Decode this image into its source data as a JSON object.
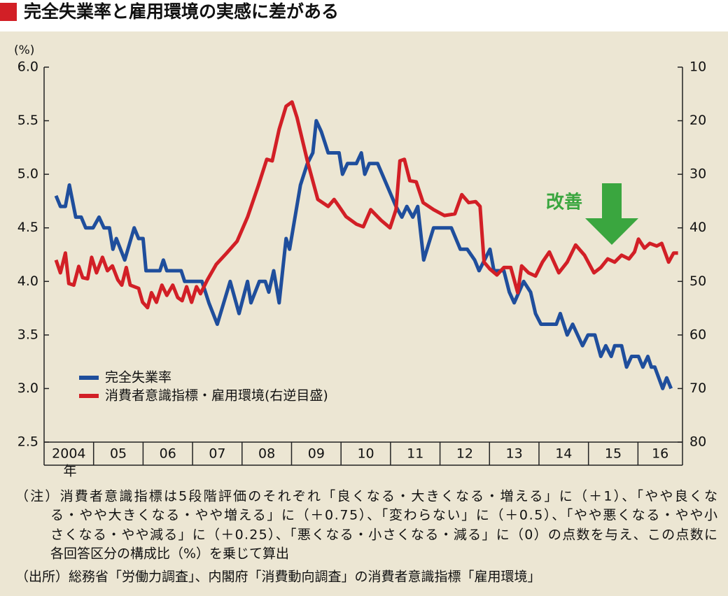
{
  "title": "完全失業率と雇用環境の実感に差がある",
  "chart_data": {
    "type": "line",
    "y_unit": "(%)",
    "x_unit": "年",
    "xlim": [
      2004,
      2016.9
    ],
    "xticks": [
      {
        "value": 2004,
        "label": "2004"
      },
      {
        "value": 2005,
        "label": "05"
      },
      {
        "value": 2006,
        "label": "06"
      },
      {
        "value": 2007,
        "label": "07"
      },
      {
        "value": 2008,
        "label": "08"
      },
      {
        "value": 2009,
        "label": "09"
      },
      {
        "value": 2010,
        "label": "10"
      },
      {
        "value": 2011,
        "label": "11"
      },
      {
        "value": 2012,
        "label": "12"
      },
      {
        "value": 2013,
        "label": "13"
      },
      {
        "value": 2014,
        "label": "14"
      },
      {
        "value": 2015,
        "label": "15"
      },
      {
        "value": 2016,
        "label": "16"
      }
    ],
    "ylim": [
      2.5,
      6
    ],
    "yticks": [
      {
        "value": 6,
        "label": "6.0"
      },
      5.5,
      {
        "value": 5,
        "label": "5.0"
      },
      4.5,
      {
        "value": 4,
        "label": "4.0"
      },
      3.5,
      {
        "value": 3,
        "label": "3.0"
      },
      2.5
    ],
    "y2lim": [
      80,
      10
    ],
    "y2ticks": [
      10,
      20,
      30,
      40,
      50,
      60,
      70,
      80
    ],
    "series": [
      {
        "name": "完全失業率",
        "color": "#1f4e9c",
        "axis": "y",
        "x": [
          2004.24,
          2004.33,
          2004.43,
          2004.51,
          2004.64,
          2004.75,
          2004.84,
          2004.99,
          2005.11,
          2005.21,
          2005.32,
          2005.39,
          2005.46,
          2005.63,
          2005.82,
          2005.91,
          2006.0,
          2006.06,
          2006.34,
          2006.41,
          2006.48,
          2006.77,
          2006.84,
          2007.19,
          2007.26,
          2007.33,
          2007.5,
          2007.76,
          2007.94,
          2008.11,
          2008.18,
          2008.35,
          2008.47,
          2008.54,
          2008.64,
          2008.75,
          2008.89,
          2008.96,
          2009.18,
          2009.32,
          2009.43,
          2009.5,
          2009.6,
          2009.67,
          2009.74,
          2009.96,
          2010.03,
          2010.13,
          2010.31,
          2010.41,
          2010.48,
          2010.57,
          2010.74,
          2011.11,
          2011.23,
          2011.33,
          2011.45,
          2011.55,
          2011.67,
          2011.87,
          2012.23,
          2012.41,
          2012.55,
          2012.7,
          2012.79,
          2013.01,
          2013.09,
          2013.29,
          2013.4,
          2013.5,
          2013.69,
          2013.83,
          2013.93,
          2014.04,
          2014.35,
          2014.43,
          2014.57,
          2014.68,
          2014.88,
          2014.99,
          2015.13,
          2015.25,
          2015.35,
          2015.46,
          2015.53,
          2015.67,
          2015.77,
          2015.87,
          2016.01,
          2016.1,
          2016.2,
          2016.27,
          2016.34,
          2016.5,
          2016.58,
          2016.67
        ],
        "values": [
          4.8,
          4.7,
          4.7,
          4.9,
          4.6,
          4.6,
          4.5,
          4.5,
          4.6,
          4.5,
          4.5,
          4.3,
          4.4,
          4.2,
          4.5,
          4.4,
          4.4,
          4.1,
          4.1,
          4.2,
          4.1,
          4.1,
          4.0,
          4.0,
          3.9,
          3.8,
          3.6,
          4.0,
          3.7,
          4.0,
          3.8,
          4.0,
          4.0,
          3.9,
          4.1,
          3.8,
          4.4,
          4.3,
          4.9,
          5.1,
          5.2,
          5.5,
          5.4,
          5.3,
          5.2,
          5.2,
          5.0,
          5.1,
          5.1,
          5.2,
          5.0,
          5.1,
          5.1,
          4.7,
          4.6,
          4.7,
          4.6,
          4.7,
          4.2,
          4.5,
          4.5,
          4.3,
          4.3,
          4.2,
          4.1,
          4.3,
          4.1,
          4.1,
          3.9,
          3.8,
          4.0,
          3.9,
          3.7,
          3.6,
          3.6,
          3.7,
          3.5,
          3.6,
          3.4,
          3.5,
          3.5,
          3.3,
          3.4,
          3.3,
          3.4,
          3.4,
          3.2,
          3.3,
          3.3,
          3.2,
          3.3,
          3.2,
          3.2,
          3.0,
          3.1,
          3.0
        ]
      },
      {
        "name": "消費者意識指標・雇用環境(右逆目盛)",
        "color": "#d21f26",
        "axis": "y2",
        "x": [
          2004.24,
          2004.33,
          2004.43,
          2004.5,
          2004.6,
          2004.7,
          2004.78,
          2004.88,
          2004.96,
          2005.06,
          2005.18,
          2005.28,
          2005.38,
          2005.49,
          2005.57,
          2005.66,
          2005.74,
          2005.91,
          2005.99,
          2006.09,
          2006.17,
          2006.27,
          2006.38,
          2006.48,
          2006.6,
          2006.7,
          2006.79,
          2006.88,
          2006.98,
          2007.08,
          2007.16,
          2007.3,
          2007.48,
          2007.69,
          2007.9,
          2008.11,
          2008.33,
          2008.5,
          2008.61,
          2008.75,
          2008.89,
          2009.01,
          2009.11,
          2009.32,
          2009.53,
          2009.74,
          2009.86,
          2009.96,
          2010.1,
          2010.31,
          2010.45,
          2010.6,
          2010.81,
          2010.99,
          2011.11,
          2011.19,
          2011.28,
          2011.39,
          2011.52,
          2011.66,
          2011.87,
          2012.09,
          2012.3,
          2012.44,
          2012.58,
          2012.72,
          2012.81,
          2012.89,
          2013.01,
          2013.15,
          2013.29,
          2013.43,
          2013.57,
          2013.65,
          2013.79,
          2013.93,
          2014.07,
          2014.21,
          2014.4,
          2014.57,
          2014.74,
          2014.92,
          2015.11,
          2015.25,
          2015.39,
          2015.53,
          2015.67,
          2015.82,
          2015.93,
          2016.01,
          2016.13,
          2016.24,
          2016.38,
          2016.48,
          2016.62,
          2016.72,
          2016.81
        ],
        "values": [
          46.0,
          48.4,
          44.7,
          50.4,
          50.7,
          47.2,
          49.3,
          49.5,
          45.5,
          48.4,
          45.5,
          48.0,
          47.1,
          49.7,
          50.7,
          47.4,
          50.7,
          51.3,
          53.9,
          54.9,
          52.1,
          53.9,
          50.7,
          52.6,
          50.7,
          53.0,
          53.6,
          51.0,
          53.9,
          51.0,
          52.3,
          49.7,
          46.8,
          44.7,
          42.5,
          38.0,
          32.1,
          27.2,
          27.5,
          21.6,
          17.3,
          16.5,
          19.4,
          27.5,
          34.7,
          36.0,
          34.7,
          36.0,
          37.9,
          39.3,
          39.8,
          36.6,
          38.6,
          40.0,
          36.6,
          27.5,
          27.2,
          31.2,
          31.4,
          35.3,
          36.6,
          37.7,
          37.4,
          33.8,
          35.3,
          35.1,
          36.0,
          46.4,
          47.7,
          48.8,
          47.4,
          47.4,
          52.1,
          47.1,
          48.4,
          49.0,
          46.4,
          44.5,
          48.4,
          46.4,
          43.2,
          45.1,
          48.4,
          47.4,
          45.8,
          46.4,
          45.1,
          45.8,
          44.5,
          42.1,
          43.8,
          42.9,
          43.4,
          42.9,
          46.4,
          44.7,
          44.7
        ]
      }
    ],
    "legend": "lower-left",
    "annotation": "改善"
  },
  "notes": [
    "（注）消費者意識指標は5段階評価のそれぞれ「良くなる・大きくなる・増える」に（＋1）、「やや良くな",
    "る・やや大きくなる・やや増える」に（＋0.75）、「変わらない」に（＋0.5）、「やや悪くなる・やや小",
    "さくなる・やや減る」に（＋0.25）、「悪くなる・小さくなる・減る」に（0）の点数を与え、この点数に",
    "各回答区分の構成比（%）を乗じて算出"
  ],
  "source": "（出所）総務省「労働力調査」、内閣府「消費動向調査」の消費者意識指標「雇用環境」"
}
